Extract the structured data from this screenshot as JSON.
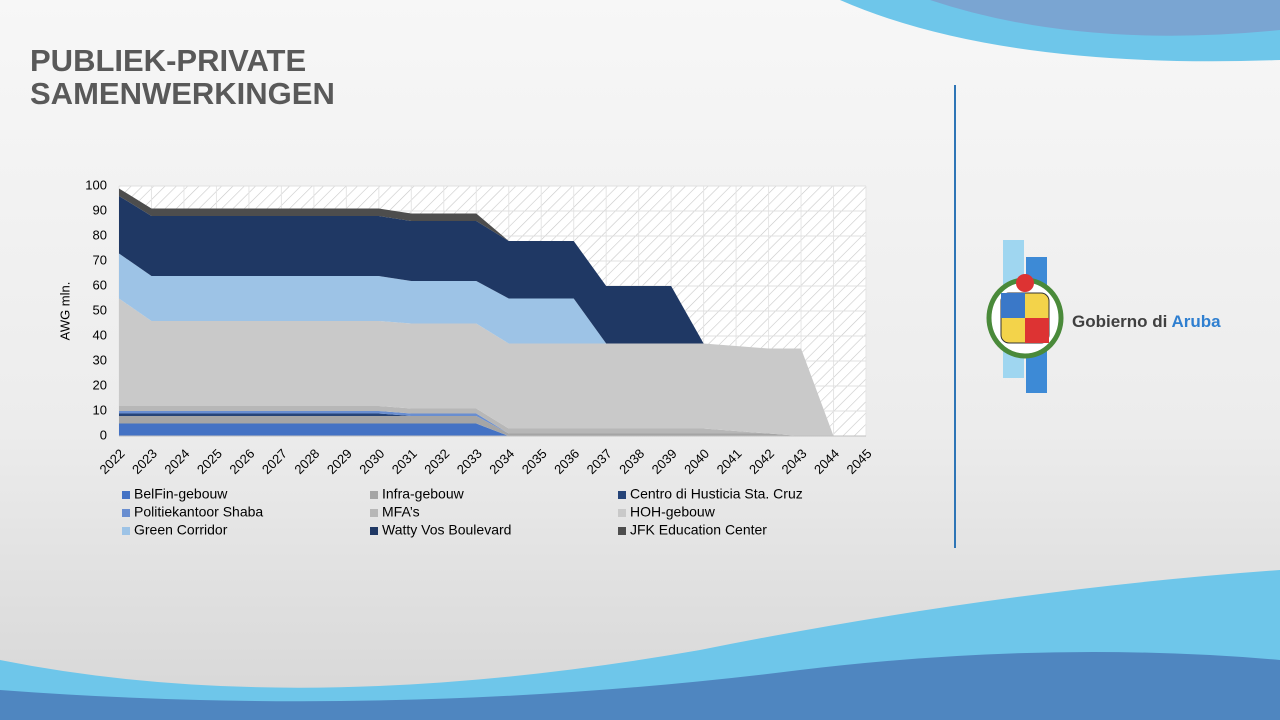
{
  "header": {
    "title": [
      "PUBLIEK-PRIVATE",
      "SAMENWERKINGEN"
    ]
  },
  "logo": {
    "text_1": "Gobierno di",
    "text_2": "Aruba"
  },
  "chart_data": {
    "type": "stacked-area",
    "y_label": "AWG mln.",
    "categories": [
      "2022",
      "2023",
      "2024",
      "2025",
      "2026",
      "2027",
      "2028",
      "2029",
      "2030",
      "2031",
      "2032",
      "2033",
      "2034",
      "2035",
      "2036",
      "2037",
      "2038",
      "2039",
      "2040",
      "2041",
      "2042",
      "2043",
      "2044",
      "2045"
    ],
    "ylim": [
      0,
      100
    ],
    "yticks": [
      0,
      10,
      20,
      30,
      40,
      50,
      60,
      70,
      80,
      90,
      100
    ],
    "grid": true,
    "series": [
      {
        "name": "BelFin-gebouw",
        "color": "#4472c4",
        "values": [
          5,
          5,
          5,
          5,
          5,
          5,
          5,
          5,
          5,
          5,
          5,
          5,
          0,
          0,
          0,
          0,
          0,
          0,
          0,
          0,
          0,
          0,
          0,
          0
        ]
      },
      {
        "name": "Infra-gebouw",
        "color": "#a5a5a5",
        "values": [
          3,
          3,
          3,
          3,
          3,
          3,
          3,
          3,
          3,
          3,
          3,
          3,
          1,
          1,
          1,
          1,
          1,
          1,
          1,
          1,
          1,
          0,
          0,
          0
        ]
      },
      {
        "name": "Centro di Husticia Sta. Cruz",
        "color": "#264478",
        "values": [
          1,
          1,
          1,
          1,
          1,
          1,
          1,
          1,
          1,
          0,
          0,
          0,
          0,
          0,
          0,
          0,
          0,
          0,
          0,
          0,
          0,
          0,
          0,
          0
        ]
      },
      {
        "name": "Politiekantoor Shaba",
        "color": "#698ed0",
        "values": [
          1,
          1,
          1,
          1,
          1,
          1,
          1,
          1,
          1,
          1,
          1,
          1,
          0,
          0,
          0,
          0,
          0,
          0,
          0,
          0,
          0,
          0,
          0,
          0
        ]
      },
      {
        "name": "MFA’s",
        "color": "#b7b7b7",
        "values": [
          2,
          2,
          2,
          2,
          2,
          2,
          2,
          2,
          2,
          2,
          2,
          2,
          2,
          2,
          2,
          2,
          2,
          2,
          2,
          1,
          0,
          0,
          0,
          0
        ]
      },
      {
        "name": "HOH-gebouw",
        "color": "#c9c9c9",
        "values": [
          43,
          34,
          34,
          34,
          34,
          34,
          34,
          34,
          34,
          34,
          34,
          34,
          34,
          34,
          34,
          34,
          34,
          34,
          34,
          34,
          34,
          35,
          0,
          0
        ]
      },
      {
        "name": "Green Corridor",
        "color": "#9dc3e6",
        "values": [
          18,
          18,
          18,
          18,
          18,
          18,
          18,
          18,
          18,
          17,
          17,
          17,
          18,
          18,
          18,
          0,
          0,
          0,
          0,
          0,
          0,
          0,
          0,
          0
        ]
      },
      {
        "name": "Watty Vos Boulevard",
        "color": "#1f3864",
        "values": [
          23,
          24,
          24,
          24,
          24,
          24,
          24,
          24,
          24,
          24,
          24,
          24,
          23,
          23,
          23,
          23,
          23,
          23,
          0,
          0,
          0,
          0,
          0,
          0
        ]
      },
      {
        "name": "JFK Education Center",
        "color": "#4d4d4d",
        "values": [
          3,
          3,
          3,
          3,
          3,
          3,
          3,
          3,
          3,
          3,
          3,
          3,
          0,
          0,
          0,
          0,
          0,
          0,
          0,
          0,
          0,
          0,
          0,
          0
        ]
      }
    ]
  }
}
